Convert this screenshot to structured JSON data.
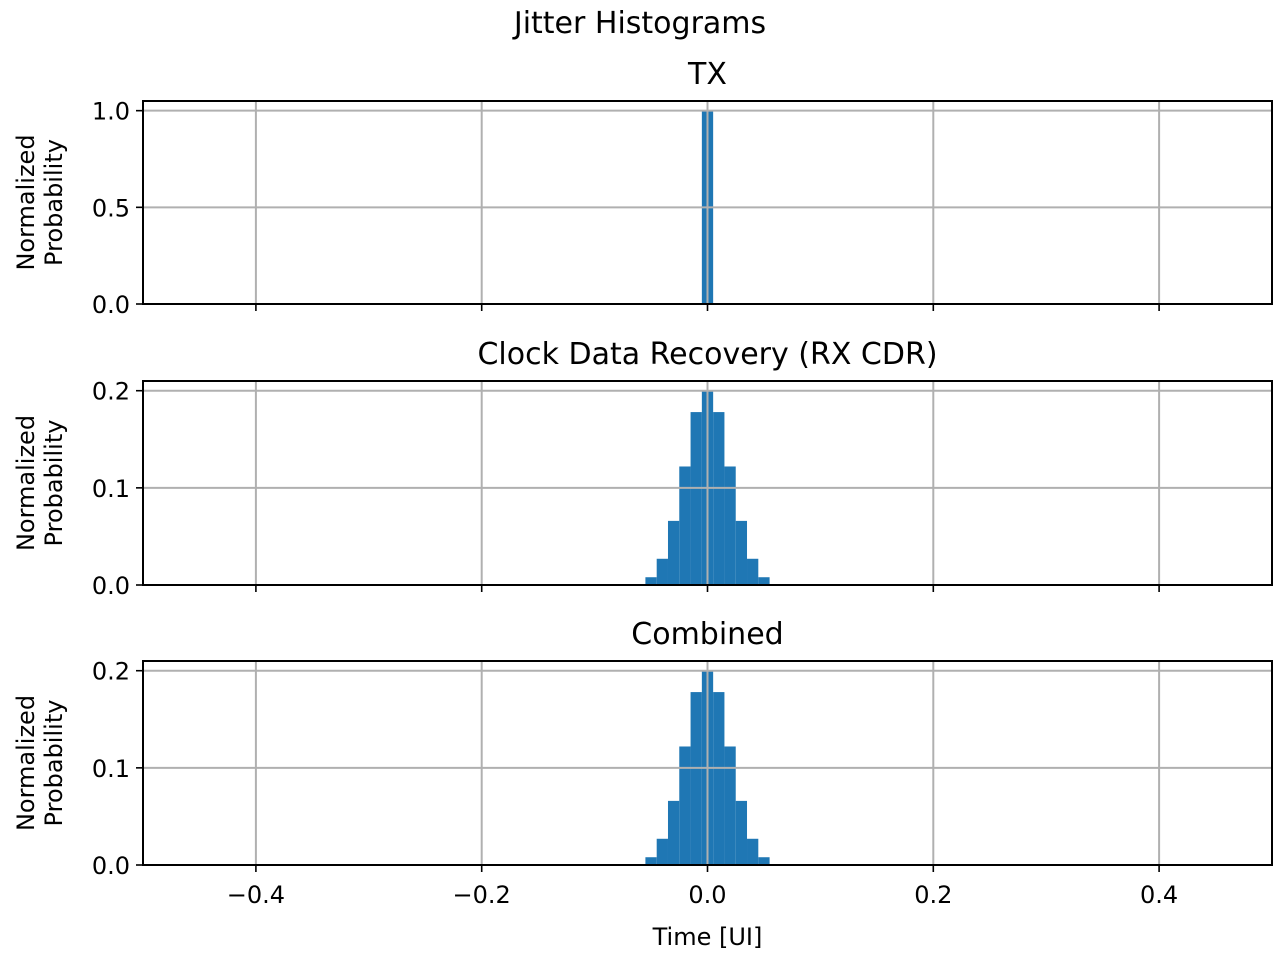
{
  "figure": {
    "suptitle": "Jitter Histograms",
    "bar_color": "#1f77b4",
    "grid_color": "#b0b0b0"
  },
  "chart_data": [
    {
      "type": "bar",
      "title": "TX",
      "ylabel": [
        "Normalized",
        "Probability"
      ],
      "xlabel": "",
      "xlim": [
        -0.5,
        0.5
      ],
      "ylim": [
        0,
        1.05
      ],
      "xticks": [
        -0.4,
        -0.2,
        0.0,
        0.2,
        0.4
      ],
      "xtick_labels": [
        "",
        "",
        "",
        "",
        ""
      ],
      "yticks": [
        0.0,
        0.5,
        1.0
      ],
      "ytick_labels": [
        "0.0",
        "0.5",
        "1.0"
      ],
      "grid": true,
      "bin_width": 0.01,
      "bins": [
        {
          "x": 0.0,
          "y": 1.0
        }
      ]
    },
    {
      "type": "bar",
      "title": "Clock Data Recovery (RX CDR)",
      "ylabel": [
        "Normalized",
        "Probability"
      ],
      "xlabel": "",
      "xlim": [
        -0.5,
        0.5
      ],
      "ylim": [
        0,
        0.21
      ],
      "xticks": [
        -0.4,
        -0.2,
        0.0,
        0.2,
        0.4
      ],
      "xtick_labels": [
        "",
        "",
        "",
        "",
        ""
      ],
      "yticks": [
        0.0,
        0.1,
        0.2
      ],
      "ytick_labels": [
        "0.0",
        "0.1",
        "0.2"
      ],
      "grid": true,
      "bin_width": 0.01,
      "bins": [
        {
          "x": -0.06,
          "y": 0.001
        },
        {
          "x": -0.05,
          "y": 0.008
        },
        {
          "x": -0.04,
          "y": 0.027
        },
        {
          "x": -0.03,
          "y": 0.066
        },
        {
          "x": -0.02,
          "y": 0.122
        },
        {
          "x": -0.01,
          "y": 0.178
        },
        {
          "x": 0.0,
          "y": 0.2
        },
        {
          "x": 0.01,
          "y": 0.178
        },
        {
          "x": 0.02,
          "y": 0.122
        },
        {
          "x": 0.03,
          "y": 0.066
        },
        {
          "x": 0.04,
          "y": 0.027
        },
        {
          "x": 0.05,
          "y": 0.008
        },
        {
          "x": 0.06,
          "y": 0.001
        }
      ]
    },
    {
      "type": "bar",
      "title": "Combined",
      "ylabel": [
        "Normalized",
        "Probability"
      ],
      "xlabel": "Time [UI]",
      "xlim": [
        -0.5,
        0.5
      ],
      "ylim": [
        0,
        0.21
      ],
      "xticks": [
        -0.4,
        -0.2,
        0.0,
        0.2,
        0.4
      ],
      "xtick_labels": [
        "−0.4",
        "−0.2",
        "0.0",
        "0.2",
        "0.4"
      ],
      "yticks": [
        0.0,
        0.1,
        0.2
      ],
      "ytick_labels": [
        "0.0",
        "0.1",
        "0.2"
      ],
      "grid": true,
      "bin_width": 0.01,
      "bins": [
        {
          "x": -0.06,
          "y": 0.001
        },
        {
          "x": -0.05,
          "y": 0.008
        },
        {
          "x": -0.04,
          "y": 0.027
        },
        {
          "x": -0.03,
          "y": 0.066
        },
        {
          "x": -0.02,
          "y": 0.122
        },
        {
          "x": -0.01,
          "y": 0.178
        },
        {
          "x": 0.0,
          "y": 0.2
        },
        {
          "x": 0.01,
          "y": 0.178
        },
        {
          "x": 0.02,
          "y": 0.122
        },
        {
          "x": 0.03,
          "y": 0.066
        },
        {
          "x": 0.04,
          "y": 0.027
        },
        {
          "x": 0.05,
          "y": 0.008
        },
        {
          "x": 0.06,
          "y": 0.001
        }
      ]
    }
  ]
}
